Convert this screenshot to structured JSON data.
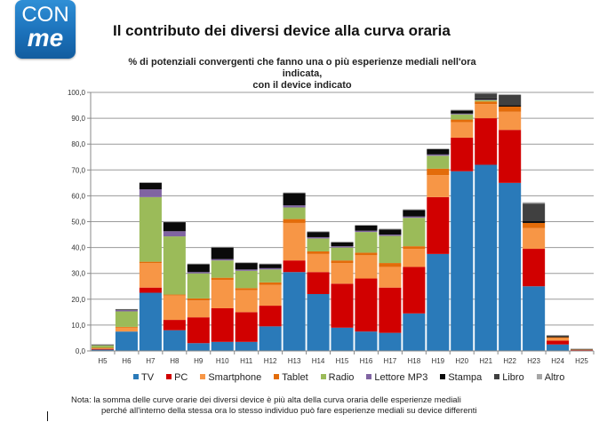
{
  "logo": {
    "line1": "CON",
    "line2": "me"
  },
  "title": "Il contributo dei diversi device alla curva oraria",
  "note_line1": "Nota: la somma delle curve orarie dei diversi device è più alta della curva oraria delle esperienze mediali",
  "note_line2": "perché all'interno della stessa ora lo stesso individuo può fare esperienze mediali su device differenti",
  "chart_data": {
    "type": "bar",
    "stacked": true,
    "title": "% di potenziali convergenti che fanno una o più esperienze mediali nell'ora indicata, con il device indicato",
    "subtitle_line1": "% di potenziali convergenti che fanno una o più esperienze mediali nell'ora indicata,",
    "subtitle_line2": "con il device indicato",
    "xlabel": "",
    "ylabel": "",
    "ylim": [
      0,
      100
    ],
    "yticks": [
      "0,0",
      "10,0",
      "20,0",
      "30,0",
      "40,0",
      "50,0",
      "60,0",
      "70,0",
      "80,0",
      "90,0",
      "100,0"
    ],
    "grid": true,
    "legend_position": "bottom",
    "categories": [
      "H5",
      "H6",
      "H7",
      "H8",
      "H9",
      "H10",
      "H11",
      "H12",
      "H13",
      "H14",
      "H15",
      "H16",
      "H17",
      "H18",
      "H19",
      "H20",
      "H21",
      "H22",
      "H23",
      "H24",
      "H25"
    ],
    "series": [
      {
        "name": "TV",
        "color": "#2a7ab9",
        "values": [
          0.5,
          7.5,
          22.5,
          8.0,
          3.0,
          3.5,
          3.5,
          9.5,
          30.5,
          22.0,
          9.0,
          7.5,
          7.0,
          14.5,
          37.5,
          69.5,
          72.0,
          65.0,
          25.0,
          2.5,
          0.2
        ]
      },
      {
        "name": "PC",
        "color": "#d10000",
        "values": [
          0.3,
          0.0,
          2.0,
          4.0,
          10.0,
          13.0,
          11.5,
          8.0,
          4.5,
          8.5,
          17.0,
          20.5,
          17.5,
          18.0,
          22.0,
          13.0,
          18.0,
          20.5,
          14.5,
          1.5,
          0.2
        ]
      },
      {
        "name": "Smartphone",
        "color": "#f79646",
        "values": [
          0.3,
          1.5,
          9.5,
          9.5,
          6.5,
          11.0,
          8.5,
          8.0,
          14.5,
          7.0,
          8.0,
          9.0,
          8.0,
          7.0,
          8.5,
          6.0,
          5.5,
          7.0,
          8.0,
          1.0,
          0.1
        ]
      },
      {
        "name": "Tablet",
        "color": "#e36c0a",
        "values": [
          0.1,
          0.3,
          0.5,
          0.3,
          0.8,
          0.8,
          0.8,
          1.0,
          1.5,
          1.0,
          1.0,
          1.0,
          1.5,
          1.0,
          2.5,
          1.0,
          1.0,
          2.0,
          2.0,
          0.3,
          0.0
        ]
      },
      {
        "name": "Radio",
        "color": "#9bbb59",
        "values": [
          1.0,
          6.0,
          25.0,
          22.5,
          9.7,
          6.7,
          6.7,
          5.0,
          4.5,
          5.0,
          5.0,
          8.0,
          10.5,
          11.0,
          5.0,
          2.0,
          0.5,
          0.0,
          0.0,
          0.0,
          0.0
        ]
      },
      {
        "name": "Lettore MP3",
        "color": "#8064a2",
        "values": [
          0.2,
          0.5,
          3.0,
          2.0,
          0.5,
          0.5,
          0.5,
          0.5,
          0.8,
          0.5,
          0.5,
          0.5,
          0.5,
          0.5,
          0.5,
          0.3,
          0.2,
          0.0,
          0.0,
          0.0,
          0.0
        ]
      },
      {
        "name": "Stampa",
        "color": "#0a0a0a",
        "values": [
          0.1,
          0.2,
          2.5,
          3.5,
          3.0,
          4.5,
          2.5,
          1.5,
          4.7,
          2.0,
          1.5,
          2.0,
          2.0,
          2.5,
          2.0,
          1.2,
          0.5,
          0.5,
          0.8,
          0.2,
          0.0
        ]
      },
      {
        "name": "Libro",
        "color": "#404040",
        "values": [
          0.0,
          0.0,
          0.0,
          0.0,
          0.0,
          0.0,
          0.0,
          0.0,
          0.0,
          0.0,
          0.0,
          0.0,
          0.0,
          0.0,
          0.0,
          0.0,
          1.8,
          4.0,
          6.7,
          0.5,
          0.3
        ]
      },
      {
        "name": "Altro",
        "color": "#a6a6a6",
        "values": [
          0.1,
          0.2,
          0.3,
          0.2,
          0.3,
          0.3,
          0.3,
          0.3,
          0.3,
          0.3,
          0.3,
          0.3,
          0.3,
          0.3,
          0.3,
          0.3,
          0.3,
          0.3,
          0.5,
          0.1,
          0.1
        ]
      }
    ]
  }
}
